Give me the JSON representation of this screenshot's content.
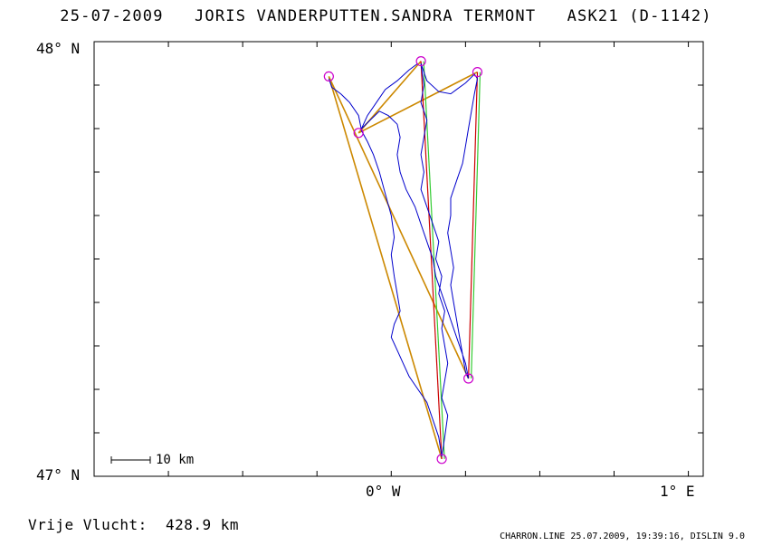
{
  "header": {
    "date": "25-07-2009",
    "pilots": "JORIS VANDERPUTTEN.SANDRA TERMONT",
    "glider": "ASK21 (D-1142)"
  },
  "axes": {
    "y_top_label": "48° N",
    "y_bottom_label": "47° N",
    "x_center_label": "0° W",
    "x_right_label": "1° E",
    "lat_range": [
      47.0,
      48.0
    ],
    "lon_range": [
      -1.0,
      1.05
    ]
  },
  "scale_bar": {
    "label": "10 km"
  },
  "footer": {
    "distance_label": "Vrije Vlucht:",
    "distance_value": "428.9 km",
    "software": "CHARRON.LINE 25.07.2009, 19:39:16, DISLIN 9.0"
  },
  "colors": {
    "track": "#0000cc",
    "task_line_primary": "#cc0000",
    "task_line_secondary": "#cc8800",
    "task_line_green": "#33cc33",
    "turnpoint": "#cc00cc",
    "frame": "#000000"
  },
  "turnpoints": [
    {
      "lon": -0.21,
      "lat": 47.92
    },
    {
      "lon": 0.1,
      "lat": 47.955
    },
    {
      "lon": 0.29,
      "lat": 47.93
    },
    {
      "lon": -0.11,
      "lat": 47.79
    },
    {
      "lon": 0.26,
      "lat": 47.225
    },
    {
      "lon": 0.17,
      "lat": 47.04
    }
  ],
  "task_legs": [
    {
      "from": 0,
      "to": 5,
      "color": "secondary"
    },
    {
      "from": 0,
      "to": 4,
      "color": "secondary"
    },
    {
      "from": 3,
      "to": 2,
      "color": "secondary"
    },
    {
      "from": 3,
      "to": 1,
      "color": "secondary"
    },
    {
      "from": 1,
      "to": 5,
      "color": "primary"
    },
    {
      "from": 2,
      "to": 4,
      "color": "primary"
    },
    {
      "from": 1,
      "to": 5,
      "color": "green"
    },
    {
      "from": 2,
      "to": 4,
      "color": "green"
    }
  ],
  "track": [
    [
      -0.21,
      47.915
    ],
    [
      -0.2,
      47.895
    ],
    [
      -0.17,
      47.88
    ],
    [
      -0.14,
      47.86
    ],
    [
      -0.11,
      47.83
    ],
    [
      -0.1,
      47.795
    ],
    [
      -0.08,
      47.77
    ],
    [
      -0.06,
      47.74
    ],
    [
      -0.04,
      47.7
    ],
    [
      -0.02,
      47.65
    ],
    [
      0.0,
      47.6
    ],
    [
      0.01,
      47.55
    ],
    [
      0.0,
      47.51
    ],
    [
      0.01,
      47.46
    ],
    [
      0.02,
      47.42
    ],
    [
      0.03,
      47.38
    ],
    [
      0.01,
      47.35
    ],
    [
      0.0,
      47.32
    ],
    [
      0.02,
      47.29
    ],
    [
      0.04,
      47.26
    ],
    [
      0.06,
      47.23
    ],
    [
      0.09,
      47.2
    ],
    [
      0.12,
      47.17
    ],
    [
      0.14,
      47.13
    ],
    [
      0.16,
      47.09
    ],
    [
      0.17,
      47.045
    ],
    [
      0.18,
      47.09
    ],
    [
      0.19,
      47.14
    ],
    [
      0.17,
      47.18
    ],
    [
      0.18,
      47.22
    ],
    [
      0.19,
      47.26
    ],
    [
      0.18,
      47.3
    ],
    [
      0.17,
      47.34
    ],
    [
      0.18,
      47.38
    ],
    [
      0.16,
      47.42
    ],
    [
      0.17,
      47.46
    ],
    [
      0.15,
      47.5
    ],
    [
      0.16,
      47.54
    ],
    [
      0.14,
      47.58
    ],
    [
      0.12,
      47.62
    ],
    [
      0.1,
      47.66
    ],
    [
      0.11,
      47.7
    ],
    [
      0.1,
      47.74
    ],
    [
      0.11,
      47.78
    ],
    [
      0.12,
      47.82
    ],
    [
      0.1,
      47.86
    ],
    [
      0.11,
      47.9
    ],
    [
      0.1,
      47.95
    ],
    [
      0.12,
      47.91
    ],
    [
      0.16,
      47.885
    ],
    [
      0.2,
      47.88
    ],
    [
      0.22,
      47.89
    ],
    [
      0.25,
      47.905
    ],
    [
      0.28,
      47.925
    ],
    [
      0.29,
      47.915
    ],
    [
      0.28,
      47.88
    ],
    [
      0.27,
      47.84
    ],
    [
      0.26,
      47.8
    ],
    [
      0.25,
      47.76
    ],
    [
      0.24,
      47.72
    ],
    [
      0.22,
      47.68
    ],
    [
      0.2,
      47.64
    ],
    [
      0.2,
      47.6
    ],
    [
      0.19,
      47.56
    ],
    [
      0.2,
      47.52
    ],
    [
      0.21,
      47.48
    ],
    [
      0.2,
      47.44
    ],
    [
      0.21,
      47.4
    ],
    [
      0.22,
      47.36
    ],
    [
      0.23,
      47.32
    ],
    [
      0.24,
      47.28
    ],
    [
      0.25,
      47.24
    ],
    [
      0.26,
      47.225
    ],
    [
      0.25,
      47.26
    ],
    [
      0.23,
      47.3
    ],
    [
      0.21,
      47.34
    ],
    [
      0.19,
      47.38
    ],
    [
      0.17,
      47.42
    ],
    [
      0.15,
      47.46
    ],
    [
      0.14,
      47.5
    ],
    [
      0.12,
      47.54
    ],
    [
      0.1,
      47.58
    ],
    [
      0.08,
      47.62
    ],
    [
      0.05,
      47.66
    ],
    [
      0.03,
      47.7
    ],
    [
      0.02,
      47.74
    ],
    [
      0.03,
      47.78
    ],
    [
      0.02,
      47.81
    ],
    [
      -0.01,
      47.83
    ],
    [
      -0.04,
      47.84
    ],
    [
      -0.07,
      47.82
    ],
    [
      -0.1,
      47.8
    ],
    [
      -0.08,
      47.83
    ],
    [
      -0.05,
      47.86
    ],
    [
      -0.02,
      47.89
    ],
    [
      0.02,
      47.91
    ],
    [
      0.06,
      47.935
    ],
    [
      0.09,
      47.95
    ]
  ]
}
